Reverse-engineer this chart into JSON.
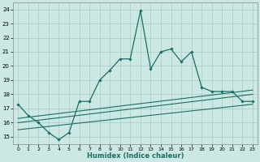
{
  "title": "",
  "xlabel": "Humidex (Indice chaleur)",
  "bg_color": "#cce8e4",
  "grid_color": "#b0d0cc",
  "line_color": "#1a6e62",
  "xlim": [
    -0.5,
    23.5
  ],
  "ylim": [
    14.5,
    24.5
  ],
  "xticks": [
    0,
    1,
    2,
    3,
    4,
    5,
    6,
    7,
    8,
    9,
    10,
    11,
    12,
    13,
    14,
    15,
    16,
    17,
    18,
    19,
    20,
    21,
    22,
    23
  ],
  "yticks": [
    15,
    16,
    17,
    18,
    19,
    20,
    21,
    22,
    23,
    24
  ],
  "line1_x": [
    0,
    1,
    2,
    3,
    4,
    5,
    6,
    7,
    8,
    9,
    10,
    11,
    12,
    13,
    14,
    15,
    16,
    17,
    18,
    19,
    20,
    21,
    22,
    23
  ],
  "line1_y": [
    17.3,
    16.5,
    16.0,
    15.3,
    14.8,
    15.3,
    17.5,
    17.5,
    19.0,
    19.7,
    20.5,
    20.5,
    23.9,
    19.8,
    21.0,
    21.2,
    20.3,
    21.0,
    18.5,
    18.2,
    18.2,
    18.2,
    17.5,
    17.5
  ],
  "line2_x": [
    0,
    23
  ],
  "line2_y": [
    16.3,
    18.3
  ],
  "line3_x": [
    0,
    23
  ],
  "line3_y": [
    16.0,
    18.0
  ],
  "line4_x": [
    0,
    23
  ],
  "line4_y": [
    15.5,
    17.3
  ]
}
